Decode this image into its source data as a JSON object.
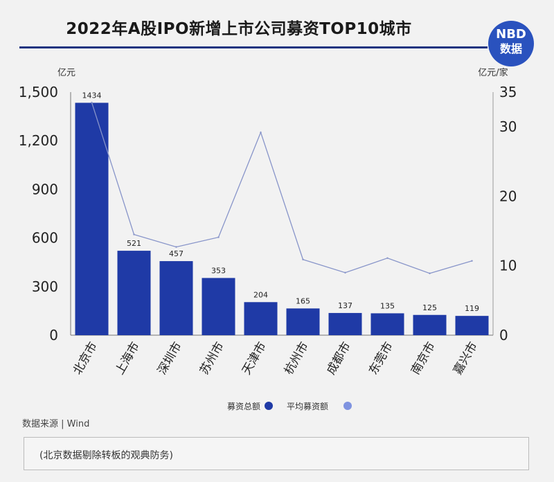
{
  "title": "2022年A股IPO新增上市公司募资TOP10城市",
  "logo": {
    "line1": "NBD",
    "line2": "数据"
  },
  "chart_data": {
    "type": "bar",
    "title": "2022年A股IPO新增上市公司募资TOP10城市",
    "categories": [
      "北京市",
      "上海市",
      "深圳市",
      "苏州市",
      "天津市",
      "杭州市",
      "成都市",
      "东莞市",
      "南京市",
      "嘉兴市"
    ],
    "series": [
      {
        "name": "募资总额",
        "type": "bar",
        "axis": "left",
        "color": "#1f3aa6",
        "values": [
          1434,
          521,
          457,
          353,
          204,
          165,
          137,
          135,
          125,
          119
        ]
      },
      {
        "name": "平均募资额",
        "type": "line",
        "axis": "right",
        "color": "#8794c9",
        "values": [
          33.5,
          14.5,
          12.7,
          14.1,
          29.2,
          10.9,
          9.0,
          11.1,
          8.9,
          10.7
        ]
      }
    ],
    "ylabel_left": "亿元",
    "ylabel_right": "亿元/家",
    "ylim_left": [
      0,
      1500
    ],
    "yticks_left": [
      "1,500",
      "1,200",
      "900",
      "600",
      "300",
      "0"
    ],
    "yticks_left_values": [
      1500,
      1200,
      900,
      600,
      300,
      0
    ],
    "ylim_right": [
      0,
      35
    ],
    "yticks_right": [
      "35",
      "30",
      "20",
      "10",
      "0"
    ],
    "yticks_right_values": [
      35,
      30,
      20,
      10,
      0
    ],
    "legend_position": "bottom"
  },
  "source": "数据来源 | Wind",
  "note": "(北京数据剔除转板的观典防务)"
}
